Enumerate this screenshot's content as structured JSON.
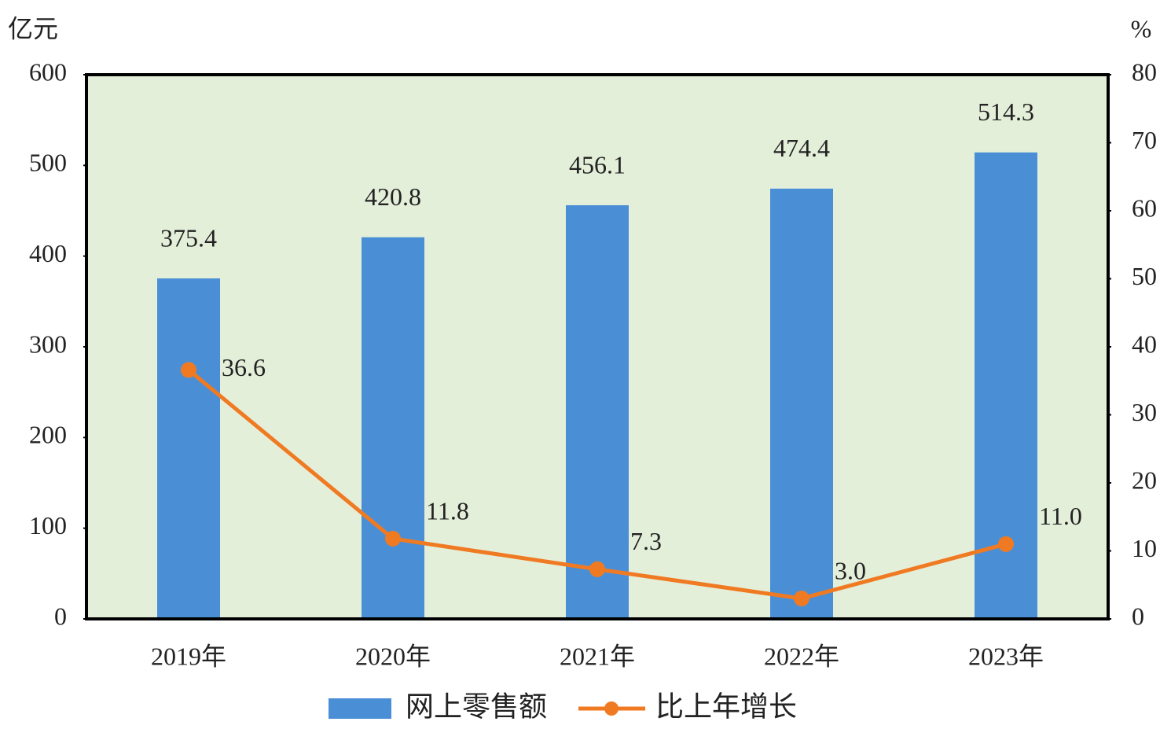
{
  "chart_data": {
    "type": "combo",
    "y_label": "亿元",
    "y2_label": "%",
    "categories": [
      "2019年",
      "2020年",
      "2021年",
      "2022年",
      "2023年"
    ],
    "series": [
      {
        "name": "网上零售额",
        "type": "bar",
        "color": "#4a8fd6",
        "values": [
          375.4,
          420.8,
          456.1,
          474.4,
          514.3
        ]
      },
      {
        "name": "比上年增长",
        "type": "line",
        "axis": "y2",
        "color": "#f07a22",
        "values": [
          36.6,
          11.8,
          7.3,
          3.0,
          11.0
        ],
        "value_labels": [
          "36.6",
          "11.8",
          "7.3",
          "3.0",
          "11.0"
        ]
      }
    ],
    "ylim": [
      0,
      600
    ],
    "yticks": [
      0,
      100,
      200,
      300,
      400,
      500,
      600
    ],
    "y2lim": [
      0,
      80
    ],
    "y2ticks": [
      0,
      10,
      20,
      30,
      40,
      50,
      60,
      70,
      80
    ],
    "plot_background": "#e4efda",
    "legend": "bottom"
  }
}
